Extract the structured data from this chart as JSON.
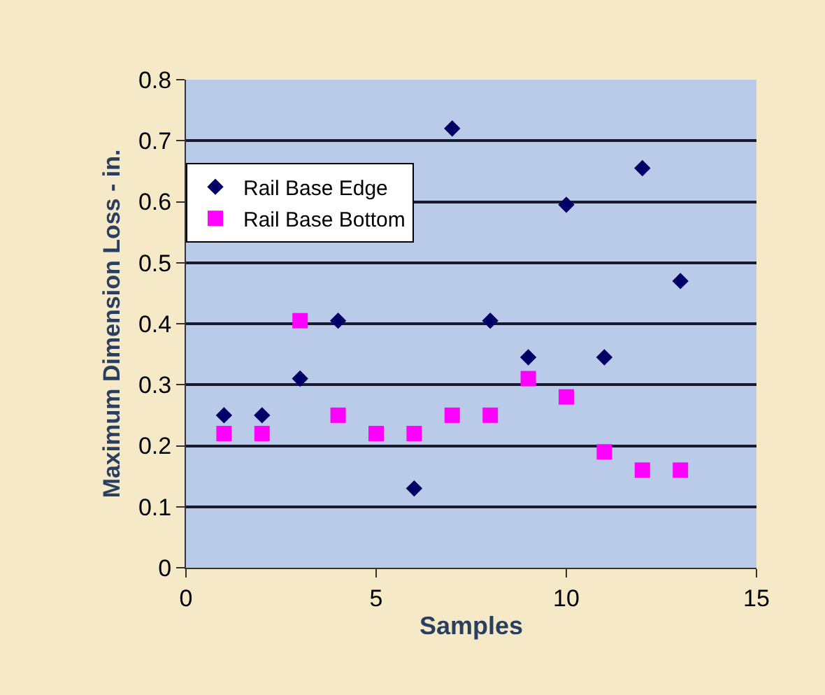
{
  "chart_data": {
    "type": "scatter",
    "xlabel": "Samples",
    "ylabel": "Maximum Dimension Loss - in.",
    "xlim": [
      0,
      15
    ],
    "xticks": [
      0,
      5,
      10,
      15
    ],
    "ylim": [
      0,
      0.8
    ],
    "yticks": [
      0,
      0.1,
      0.2,
      0.3,
      0.4,
      0.5,
      0.6,
      0.7,
      0.8
    ],
    "grid": "y",
    "legend": "top left",
    "series": [
      {
        "name": "Rail Base Edge",
        "color": "#000066",
        "marker": "diamond",
        "x": [
          1,
          2,
          3,
          4,
          6,
          7,
          8,
          9,
          10,
          11,
          12,
          13
        ],
        "values": [
          0.25,
          0.25,
          0.31,
          0.405,
          0.13,
          0.72,
          0.405,
          0.345,
          0.595,
          0.345,
          0.655,
          0.47
        ]
      },
      {
        "name": "Rail Base Bottom",
        "color": "#ff00ff",
        "marker": "square",
        "x": [
          1,
          2,
          3,
          4,
          5,
          6,
          7,
          8,
          9,
          10,
          11,
          12,
          13
        ],
        "values": [
          0.22,
          0.22,
          0.405,
          0.25,
          0.22,
          0.22,
          0.25,
          0.25,
          0.31,
          0.28,
          0.19,
          0.16,
          0.16
        ]
      }
    ]
  }
}
